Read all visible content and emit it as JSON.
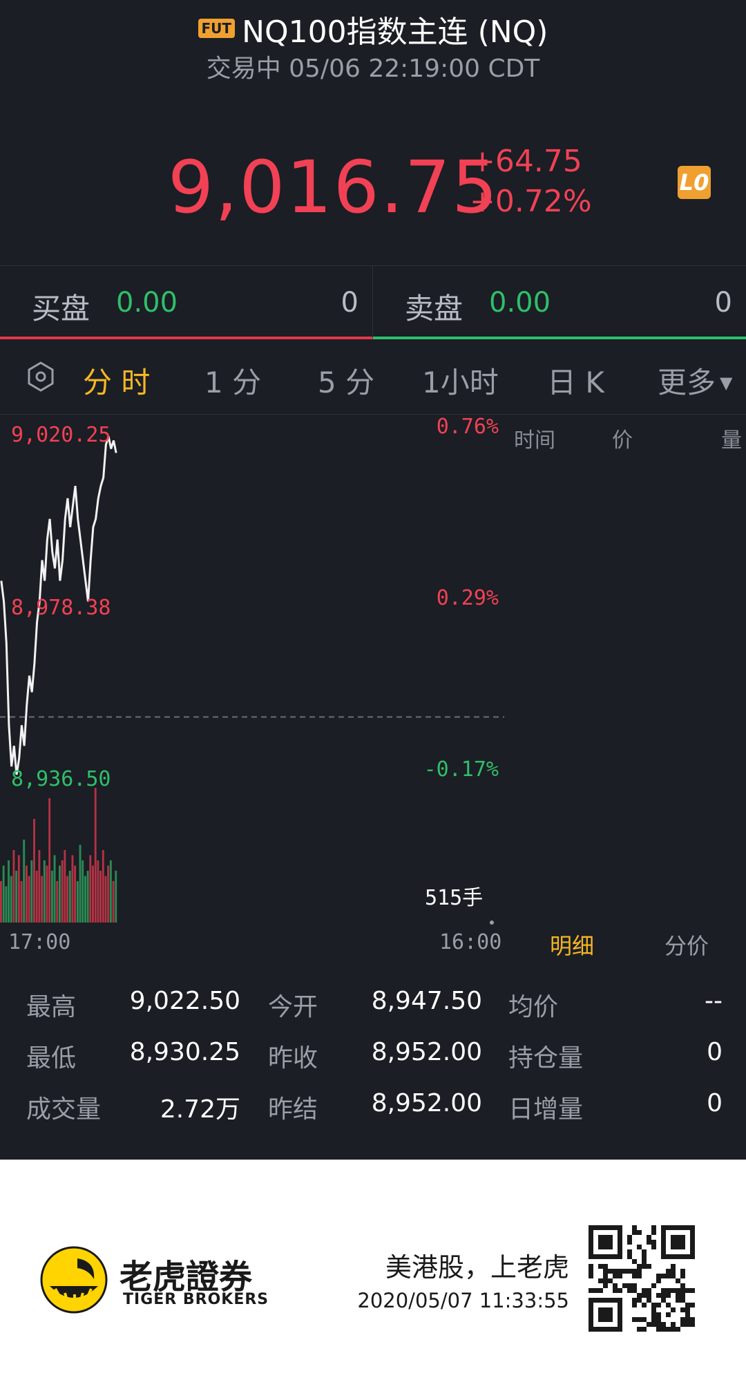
{
  "header": {
    "badge": "FUT",
    "title": "NQ100指数主连 (NQ)",
    "subtitle": "交易中 05/06 22:19:00 CDT"
  },
  "quote": {
    "price": "9,016.75",
    "change": "+64.75",
    "change_pct": "+0.72%",
    "level_badge": "L0"
  },
  "order_book": {
    "buy_label": "买盘",
    "buy_price": "0.00",
    "buy_qty": "0",
    "sell_label": "卖盘",
    "sell_price": "0.00",
    "sell_qty": "0"
  },
  "tabs": {
    "items": [
      "分 时",
      "1 分",
      "5 分",
      "1小时",
      "日 K",
      "更多"
    ],
    "active": "分 时"
  },
  "chart_data": {
    "type": "line",
    "y_labels": [
      "9,020.25",
      "8,978.38",
      "8,936.50"
    ],
    "pct_labels": [
      "0.76%",
      "0.29%",
      "-0.17%"
    ],
    "x_labels": [
      "17:00",
      "16:00"
    ],
    "volume_label": "515手",
    "reference_price": 8952.0,
    "ylim": [
      8936.5,
      9020.25
    ],
    "price": [
      8985,
      8980,
      8970,
      8950,
      8940,
      8945,
      8938,
      8942,
      8950,
      8945,
      8955,
      8962,
      8958,
      8965,
      8975,
      8980,
      8990,
      8985,
      8995,
      9000,
      8992,
      8988,
      8995,
      8985,
      8990,
      9000,
      9005,
      8998,
      9003,
      9008,
      9000,
      8995,
      8990,
      8985,
      8980,
      8990,
      8998,
      9000,
      9005,
      9008,
      9010,
      9018,
      9020,
      9017,
      9019,
      9016
    ],
    "volume": [
      40,
      55,
      35,
      60,
      45,
      70,
      50,
      65,
      40,
      80,
      55,
      45,
      60,
      100,
      50,
      70,
      45,
      60,
      55,
      120,
      50,
      65,
      40,
      55,
      60,
      70,
      45,
      50,
      65,
      55,
      40,
      75,
      60,
      45,
      50,
      65,
      55,
      130,
      60,
      50,
      70,
      45,
      55,
      60,
      40,
      50
    ]
  },
  "trade_table": {
    "col_time": "时间",
    "col_price": "价",
    "col_vol": "量"
  },
  "side_tabs": {
    "detail": "明细",
    "price_dist": "分价"
  },
  "stats": {
    "high_label": "最高",
    "high": "9,022.50",
    "low_label": "最低",
    "low": "8,930.25",
    "volume_label": "成交量",
    "volume": "2.72万",
    "open_label": "今开",
    "open": "8,947.50",
    "prev_close_label": "昨收",
    "prev_close": "8,952.00",
    "prev_settle_label": "昨结",
    "prev_settle": "8,952.00",
    "avg_label": "均价",
    "avg": "--",
    "oi_label": "持仓量",
    "oi": "0",
    "oi_change_label": "日增量",
    "oi_change": "0"
  },
  "footer": {
    "brand_cn": "老虎證券",
    "brand_en": "TIGER BROKERS",
    "slogan": "美港股，上老虎",
    "timestamp": "2020/05/07 11:33:55"
  },
  "colors": {
    "up": "#f24155",
    "down": "#2fbf6a",
    "accent": "#f5b723",
    "background": "#1b1e24"
  }
}
